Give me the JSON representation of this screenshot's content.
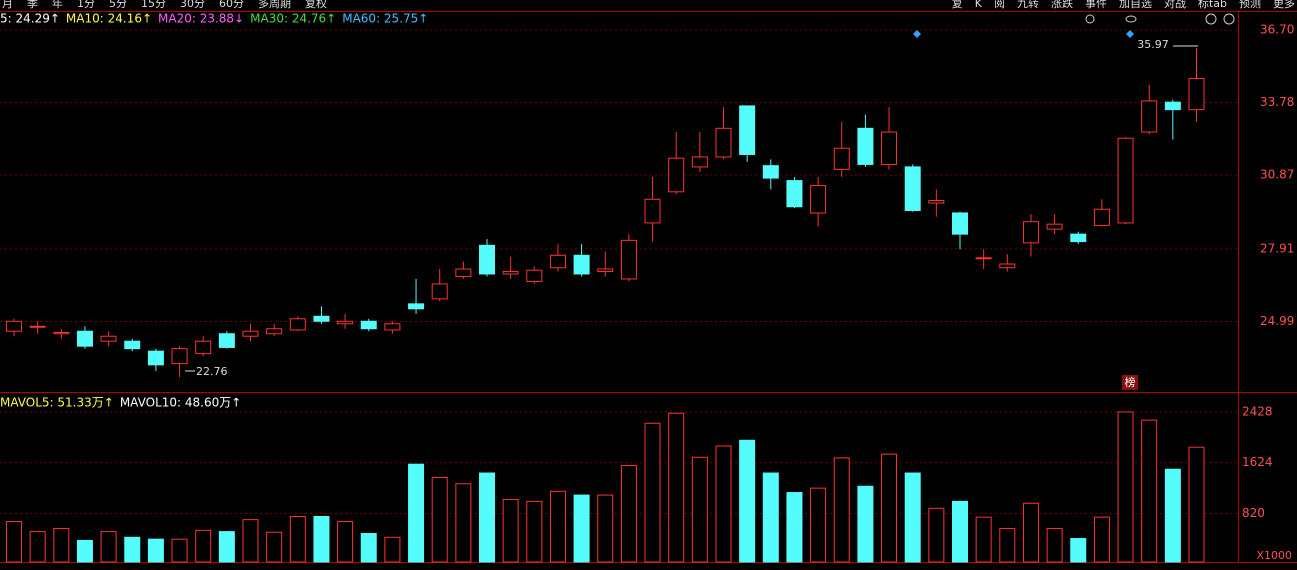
{
  "chart_data": {
    "type": "candlestick",
    "toolbar_left": [
      "月",
      "季",
      "年",
      "1分",
      "5分",
      "15分",
      "30分",
      "60分",
      "多周期",
      "复权"
    ],
    "toolbar_right": [
      "复",
      "K",
      "阅",
      "九转",
      "涨跌",
      "事件",
      "加自选",
      "对战",
      "标tab",
      "预测",
      "更多"
    ],
    "ma_legend": [
      {
        "label": "5: 24.29↑",
        "color": "#ffffff"
      },
      {
        "label": "MA10: 24.16↑",
        "color": "#ffff40"
      },
      {
        "label": "MA20: 23.88↓",
        "color": "#ff60ff"
      },
      {
        "label": "MA30: 24.76↑",
        "color": "#40e040"
      },
      {
        "label": "MA60: 25.75↑",
        "color": "#40c0ff"
      }
    ],
    "vol_legend": [
      {
        "label": "MAVOL5: 51.33万↑",
        "color": "#ffff40"
      },
      {
        "label": "MAVOL10: 48.60万↑",
        "color": "#ffffff"
      }
    ],
    "max_label": "35.97",
    "min_label": "22.76",
    "badge": "榜",
    "vol_unit": "X1000",
    "up_color": "#ff3232",
    "down_color": "#54fcfc",
    "open": [
      24.6,
      24.8,
      24.5,
      24.6,
      24.2,
      24.2,
      23.8,
      23.3,
      23.7,
      24.5,
      24.4,
      24.5,
      24.65,
      25.2,
      24.9,
      25.0,
      24.65,
      25.7,
      25.9,
      26.8,
      28.05,
      26.9,
      26.6,
      27.15,
      27.65,
      27.0,
      26.7,
      28.95,
      30.2,
      31.2,
      31.6,
      33.65,
      31.25,
      30.65,
      29.35,
      31.1,
      32.75,
      31.3,
      31.2,
      29.75,
      29.35,
      27.55,
      27.15,
      28.15,
      28.7,
      28.5,
      28.85,
      28.95,
      32.6,
      33.8,
      33.5
    ],
    "close": [
      25.0,
      24.8,
      24.55,
      24.0,
      24.4,
      23.9,
      23.25,
      23.9,
      24.2,
      23.95,
      24.6,
      24.7,
      25.1,
      25.0,
      25.0,
      24.7,
      24.9,
      25.5,
      26.5,
      27.1,
      26.9,
      27.0,
      27.05,
      27.65,
      26.9,
      27.1,
      28.25,
      29.9,
      31.55,
      31.6,
      32.75,
      31.7,
      30.75,
      29.6,
      30.45,
      31.95,
      31.3,
      32.6,
      29.45,
      29.85,
      28.5,
      27.55,
      27.3,
      29.0,
      28.9,
      28.2,
      29.5,
      32.35,
      33.85,
      33.5,
      34.75
    ],
    "high": [
      25.1,
      25.0,
      24.7,
      24.8,
      24.6,
      24.3,
      23.9,
      24.0,
      24.4,
      24.6,
      24.9,
      24.9,
      25.2,
      25.6,
      25.3,
      25.1,
      25.0,
      26.7,
      27.1,
      27.4,
      28.3,
      27.6,
      27.2,
      28.1,
      28.1,
      27.8,
      28.5,
      30.8,
      32.6,
      32.6,
      33.6,
      33.65,
      31.5,
      30.8,
      30.8,
      33.0,
      33.3,
      33.6,
      31.3,
      30.3,
      29.4,
      27.9,
      27.7,
      29.3,
      29.3,
      28.6,
      29.9,
      32.4,
      34.5,
      33.9,
      35.97
    ],
    "low": [
      24.4,
      24.5,
      24.3,
      23.9,
      24.0,
      23.8,
      23.0,
      22.76,
      23.6,
      23.9,
      24.2,
      24.4,
      24.6,
      24.9,
      24.7,
      24.6,
      24.5,
      25.3,
      25.8,
      26.7,
      26.8,
      26.7,
      26.5,
      27.0,
      26.8,
      26.8,
      26.6,
      28.2,
      30.1,
      31.0,
      31.5,
      31.4,
      30.3,
      29.55,
      28.8,
      30.8,
      31.2,
      31.1,
      29.4,
      29.2,
      27.9,
      27.1,
      27.0,
      27.6,
      28.5,
      28.1,
      28.8,
      28.9,
      32.5,
      32.3,
      33.0
    ],
    "volume": [
      690,
      530,
      580,
      390,
      530,
      440,
      410,
      410,
      550,
      530,
      720,
      520,
      770,
      770,
      690,
      500,
      440,
      1600,
      1390,
      1290,
      1460,
      1040,
      1010,
      1170,
      1110,
      1110,
      1580,
      2250,
      2410,
      1710,
      1890,
      1980,
      1460,
      1150,
      1220,
      1700,
      1250,
      1760,
      1460,
      900,
      1010,
      760,
      580,
      980,
      580,
      420,
      760,
      2430,
      2300,
      1520,
      1870
    ],
    "ylim": [
      22.24,
      37.1
    ],
    "yticks": [
      {
        "value": 36.7,
        "label": "36.70"
      },
      33.78,
      30.87,
      27.91,
      24.99
    ],
    "vol_ylim": [
      0,
      2540
    ],
    "vol_yticks": [
      820,
      1624,
      2428
    ],
    "grid": true
  }
}
